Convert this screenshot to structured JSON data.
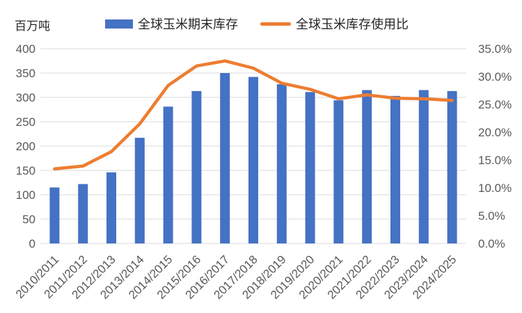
{
  "colors": {
    "bar": "#4472C4",
    "line": "#ED7D31",
    "gridline": "#D9D9D9",
    "axis_text": "#595959",
    "label_text": "#262626",
    "background": "#FFFFFF"
  },
  "chart_data": {
    "type": "bar+line",
    "title": "",
    "unit_label": "百万吨",
    "categories": [
      "2010/2011",
      "2011/2012",
      "2012/2013",
      "2013/2014",
      "2014/2015",
      "2015/2016",
      "2016/2017",
      "2017/2018",
      "2018/2019",
      "2019/2020",
      "2020/2021",
      "2021/2022",
      "2022/2023",
      "2023/2024",
      "2024/2025"
    ],
    "series": [
      {
        "name": "全球玉米期末库存",
        "type": "bar",
        "axis": "left",
        "color": "#4472C4",
        "unit": "百万吨",
        "values": [
          115,
          122,
          146,
          217,
          281,
          313,
          350,
          342,
          327,
          311,
          294,
          315,
          303,
          315,
          313
        ]
      },
      {
        "name": "全球玉米库存使用比",
        "type": "line",
        "axis": "right",
        "color": "#ED7D31",
        "unit": "%",
        "values": [
          13.4,
          13.9,
          16.5,
          21.5,
          28.4,
          31.9,
          32.8,
          31.5,
          28.8,
          27.7,
          26.0,
          26.7,
          26.1,
          26.0,
          25.7
        ]
      }
    ],
    "left_axis": {
      "unit": "百万吨",
      "min": 0,
      "max": 400,
      "step": 50,
      "ticks": [
        "0",
        "50",
        "100",
        "150",
        "200",
        "250",
        "300",
        "350",
        "400"
      ]
    },
    "right_axis": {
      "min": 0,
      "max": 35,
      "step": 5,
      "ticks": [
        "0.0%",
        "5.0%",
        "10.0%",
        "15.0%",
        "20.0%",
        "25.0%",
        "30.0%",
        "35.0%"
      ]
    },
    "grid": true,
    "legend_position": "top",
    "x_label_rotation_deg": -45
  }
}
